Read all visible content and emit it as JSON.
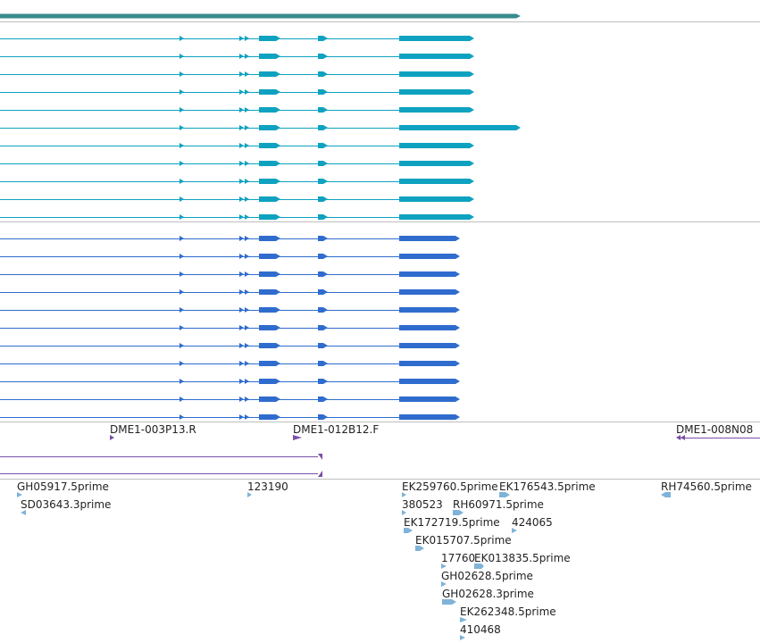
{
  "colors": {
    "gene": "#3a8c8c",
    "transcript_a": "#0ea2c0",
    "transcript_b": "#2f6cce",
    "clone": "#7a4fa8",
    "est": "#7fb3d8",
    "divider": "#bfbfbf",
    "label": "#222222"
  },
  "clones": {
    "labels": [
      {
        "id": "c1",
        "text": "DME1-003P13.R"
      },
      {
        "id": "c2",
        "text": "DME1-012B12.F"
      },
      {
        "id": "c3",
        "text": "DME1-008N08"
      }
    ]
  },
  "ests": {
    "labels": [
      {
        "id": "e1",
        "text": "GH05917.5prime"
      },
      {
        "id": "e2",
        "text": "SD03643.3prime"
      },
      {
        "id": "e3",
        "text": "123190"
      },
      {
        "id": "e4",
        "text": "EK259760.5prime"
      },
      {
        "id": "e5",
        "text": "EK176543.5prime"
      },
      {
        "id": "e6",
        "text": "RH74560.5prime"
      },
      {
        "id": "e7",
        "text": "380523"
      },
      {
        "id": "e8",
        "text": "RH60971.5prime"
      },
      {
        "id": "e9",
        "text": "EK172719.5prime"
      },
      {
        "id": "e10",
        "text": "424065"
      },
      {
        "id": "e11",
        "text": "EK015707.5prime"
      },
      {
        "id": "e12",
        "text": "17760"
      },
      {
        "id": "e13",
        "text": "EK013835.5prime"
      },
      {
        "id": "e14",
        "text": "GH02628.5prime"
      },
      {
        "id": "e15",
        "text": "GH02628.3prime"
      },
      {
        "id": "e16",
        "text": "EK262348.5prime"
      },
      {
        "id": "e17",
        "text": "410468"
      }
    ]
  }
}
